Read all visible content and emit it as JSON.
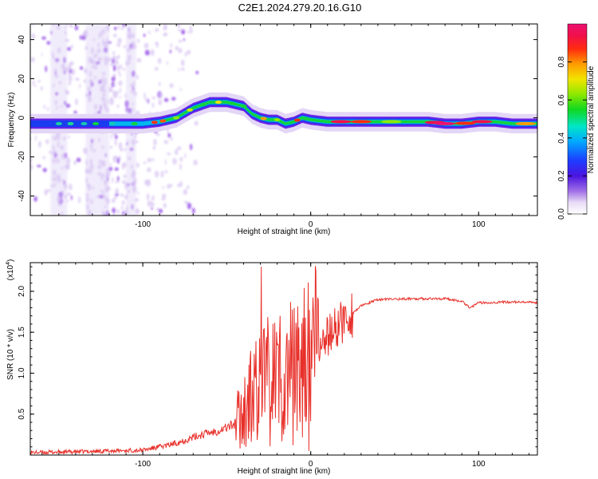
{
  "title": "C2E1.2024.279.20.16.G10",
  "chart_data": [
    {
      "type": "heatmap",
      "xlabel": "Height of straight line (km)",
      "ylabel": "Frequency (Hz)",
      "xlim": [
        -167,
        135
      ],
      "ylim": [
        -50,
        48
      ],
      "xticks": [
        -100,
        0,
        100
      ],
      "xtick_labels": [
        "-100",
        "0",
        "100"
      ],
      "yticks": [
        -40,
        -20,
        0,
        20,
        40
      ],
      "ytick_labels": [
        "-40",
        "-20",
        "0",
        "20",
        "40"
      ],
      "colorbar": {
        "label": "Normalized spectral amplitude",
        "range": [
          0,
          1
        ],
        "ticks": [
          0.0,
          0.2,
          0.4,
          0.6,
          0.8
        ],
        "tick_labels": [
          "0.0",
          "0.2",
          "0.4",
          "0.6",
          "0.8"
        ],
        "colormap": "rainbow (white-purple-blue-cyan-green-yellow-orange-red-magenta)"
      },
      "ridge": {
        "x": [
          -167,
          -150,
          -130,
          -110,
          -100,
          -90,
          -80,
          -70,
          -60,
          -50,
          -40,
          -35,
          -30,
          -25,
          -20,
          -15,
          -10,
          -5,
          0,
          10,
          30,
          50,
          70,
          80,
          90,
          100,
          110,
          120,
          135
        ],
        "y": [
          -3,
          -3,
          -3,
          -3,
          -3,
          -2,
          0,
          5,
          8,
          8,
          6,
          2,
          0,
          -1,
          -1,
          -3,
          -2,
          0,
          -1,
          -2,
          -2,
          -2,
          -2,
          -3,
          -3,
          -2,
          -2,
          -3,
          -3
        ]
      }
    },
    {
      "type": "line",
      "xlabel": "Height of straight line (km)",
      "ylabel": "SNR (10 * v/v)",
      "y_multiplier_label": "(x10",
      "y_multiplier_exponent": "4",
      "xlim": [
        -167,
        135
      ],
      "ylim": [
        0,
        2.35
      ],
      "xticks": [
        -100,
        0,
        100
      ],
      "xtick_labels": [
        "-100",
        "0",
        "100"
      ],
      "yticks": [
        0.5,
        1.0,
        1.5,
        2.0
      ],
      "ytick_labels": [
        "0.5",
        "1.0",
        "1.5",
        "2.0"
      ],
      "line_color": "#e8302a",
      "series": [
        {
          "x": [
            -167,
            -140,
            -120,
            -100,
            -95,
            -85,
            -75,
            -65,
            -55,
            -45,
            -40,
            -35,
            -30,
            -25,
            -20,
            -15,
            -10,
            -5,
            0,
            5,
            10,
            20,
            30,
            40,
            60,
            80,
            90,
            95,
            100,
            120,
            135
          ],
          "y": [
            0.03,
            0.04,
            0.05,
            0.06,
            0.08,
            0.12,
            0.18,
            0.25,
            0.3,
            0.38,
            0.55,
            0.7,
            0.85,
            0.9,
            1.0,
            0.95,
            1.05,
            1.1,
            1.2,
            1.3,
            1.45,
            1.65,
            1.82,
            1.9,
            1.91,
            1.91,
            1.88,
            1.8,
            1.86,
            1.87,
            1.86
          ]
        }
      ]
    }
  ]
}
